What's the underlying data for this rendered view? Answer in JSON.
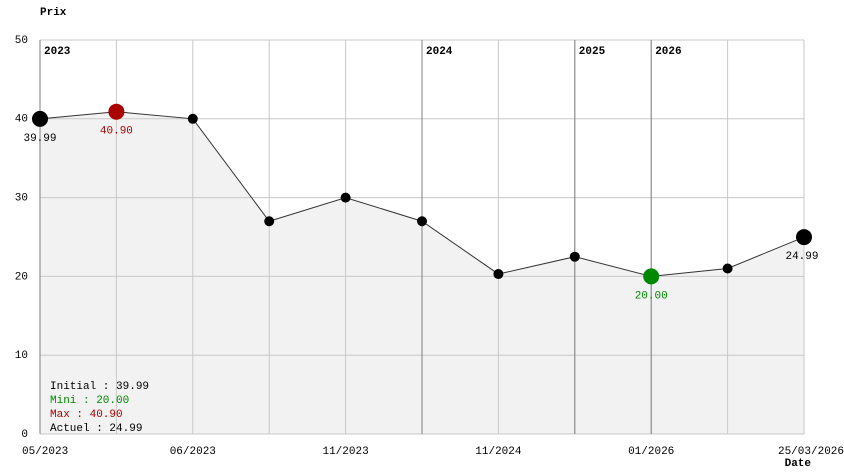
{
  "chart_data": {
    "type": "line",
    "title": "Prix",
    "x_label": "Date",
    "categories": [
      "05/2023",
      null,
      "06/2023",
      null,
      "11/2023",
      null,
      "11/2024",
      null,
      "01/2026",
      null,
      "25/03/2026"
    ],
    "values": [
      39.99,
      40.9,
      40,
      27,
      30,
      27,
      20.3,
      22.5,
      20,
      21,
      24.99
    ],
    "value_labels": [
      "39.99",
      "40.90",
      null,
      null,
      null,
      null,
      null,
      null,
      "20.00",
      null,
      "24.99"
    ],
    "point_colors": [
      "#000000",
      "#aa0000",
      "#000000",
      "#000000",
      "#000000",
      "#000000",
      "#000000",
      "#000000",
      "#008800",
      "#000000",
      "#000000"
    ],
    "line_color": "#333333",
    "area_color": "#f2f2f2",
    "ylim": [
      0,
      50
    ],
    "yticks": [
      0,
      10,
      20,
      30,
      40,
      50
    ],
    "grid": true,
    "year_markers": [
      {
        "label": "2023",
        "category": 0
      },
      {
        "label": "2024",
        "category": 5
      },
      {
        "label": "2025",
        "category": 7
      },
      {
        "label": "2026",
        "category": 8
      }
    ],
    "summary": [
      {
        "text": "Initial : 39.99",
        "color": "#000000"
      },
      {
        "text": "Mini : 20.00",
        "color": "#008800"
      },
      {
        "text": "Max : 40.90",
        "color": "#aa0000"
      },
      {
        "text": "Actuel : 24.99",
        "color": "#000000"
      }
    ]
  }
}
